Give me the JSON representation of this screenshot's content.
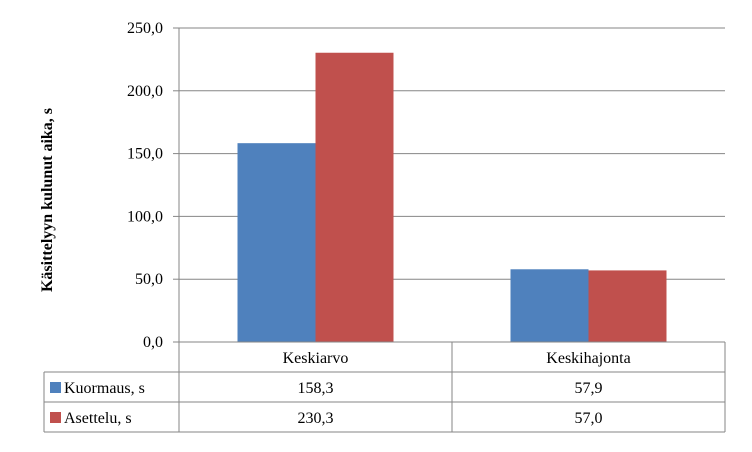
{
  "chart_data": {
    "type": "bar",
    "categories": [
      "Keskiarvo",
      "Keskihajonta"
    ],
    "series": [
      {
        "name": "Kuormaus, s",
        "values": [
          158.3,
          57.9
        ],
        "color": "#4F81BD",
        "value_labels": [
          "158,3",
          "57,9"
        ]
      },
      {
        "name": "Asettelu, s",
        "values": [
          230.3,
          57.0
        ],
        "color": "#C0504D",
        "value_labels": [
          "230,3",
          "57,0"
        ]
      }
    ],
    "ylabel": "Käsittelyyn kulunut aika, s",
    "ylim": [
      0,
      250
    ],
    "yticks": [
      0,
      50,
      100,
      150,
      200,
      250
    ],
    "ytick_labels": [
      "0,0",
      "50,0",
      "100,0",
      "150,0",
      "200,0",
      "250,0"
    ],
    "grid": true,
    "legend": "data-table",
    "title": ""
  }
}
